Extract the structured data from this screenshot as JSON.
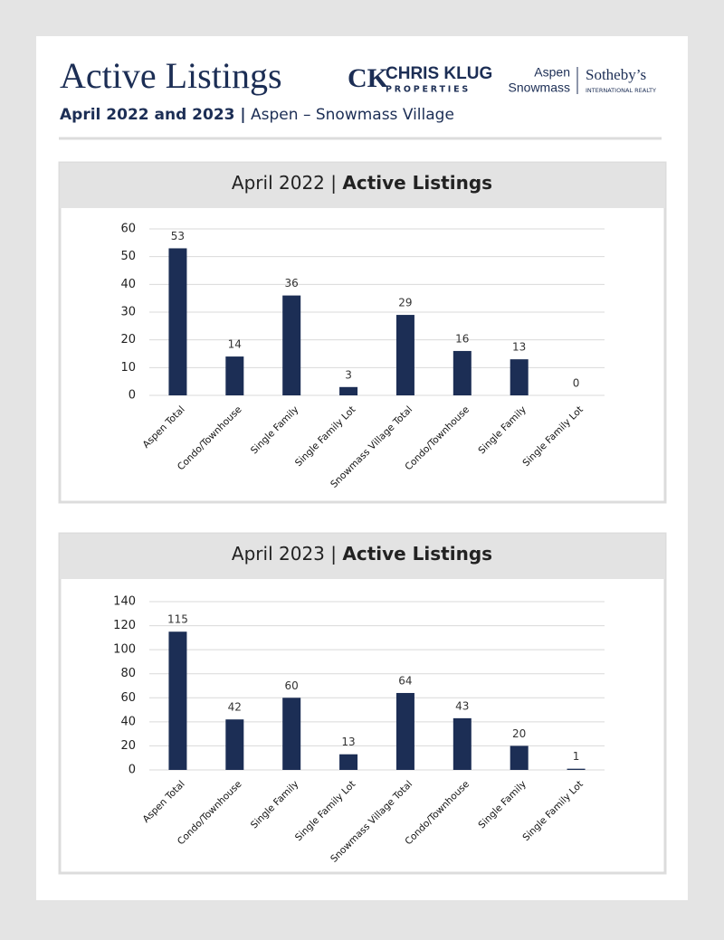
{
  "header": {
    "title": "Active Listings",
    "subtitle_bold": "April 2022 and 2023 |",
    "subtitle": "Aspen – Snowmass Village"
  },
  "logo": {
    "monogram": "CK",
    "name": "CHRIS KLUG",
    "tagline": "PROPERTIES",
    "place_1": "Aspen",
    "place_2": "Snowmass",
    "brand": "Sotheby’s",
    "brand_tagline": "INTERNATIONAL REALTY"
  },
  "chart_data": [
    {
      "type": "bar",
      "title_parts": [
        "April 2022 |",
        "Active Listings"
      ],
      "categories": [
        "Aspen Total",
        "Condo/Townhouse",
        "Single Family",
        "Single Family Lot",
        "Snowmass Village Total",
        "Condo/Townhouse",
        "Single Family",
        "Single Family Lot"
      ],
      "values": [
        53,
        14,
        36,
        3,
        29,
        16,
        13,
        0
      ],
      "color": "#1c2e55",
      "ylim": [
        0,
        60
      ],
      "yticks": [
        0,
        10,
        20,
        30,
        40,
        50,
        60
      ],
      "grid": true
    },
    {
      "type": "bar",
      "title_parts": [
        "April 2023 |",
        "Active Listings"
      ],
      "categories": [
        "Aspen Total",
        "Condo/Townhouse",
        "Single Family",
        "Single Family Lot",
        "Snowmass Village Total",
        "Condo/Townhouse",
        "Single Family",
        "Single Family Lot"
      ],
      "values": [
        115,
        42,
        60,
        13,
        64,
        43,
        20,
        1
      ],
      "color": "#1c2e55",
      "ylim": [
        0,
        140
      ],
      "yticks": [
        0,
        20,
        40,
        60,
        80,
        100,
        120,
        140
      ],
      "grid": true
    }
  ]
}
